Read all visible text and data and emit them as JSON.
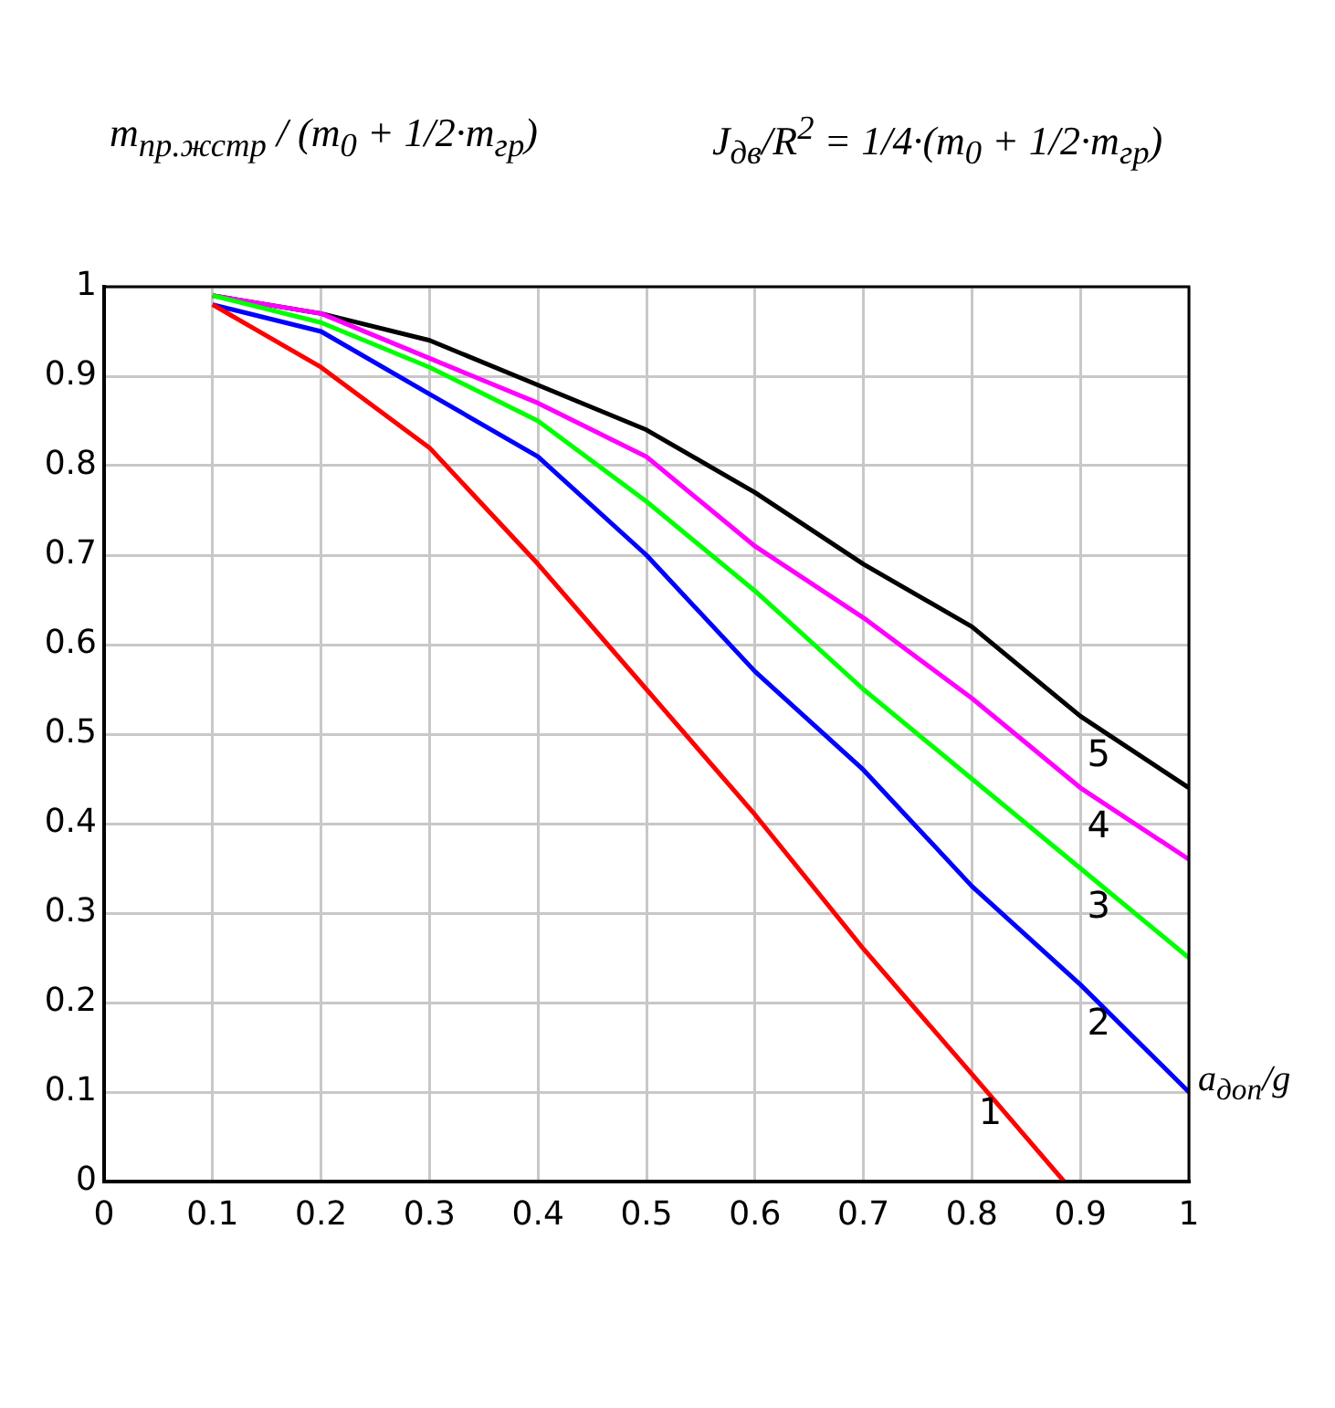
{
  "chart_data": {
    "type": "line",
    "ylabel": "m$_{пр.жстр}$ / (m$_{0}$ + 1/2·m$_{гр}$)",
    "title": "J$_{дв}$/R$^{2}$ = 1/4·(m$_{0}$ + 1/2·m$_{гр}$)",
    "xlabel": "a$_{доп}$/g",
    "x": [
      0.1,
      0.2,
      0.3,
      0.4,
      0.5,
      0.6,
      0.7,
      0.8,
      0.9,
      1.0
    ],
    "series": [
      {
        "name": "1",
        "color": "#ff0000",
        "x": [
          0.1,
          0.2,
          0.3,
          0.4,
          0.5,
          0.6,
          0.7,
          0.8,
          0.885
        ],
        "values": [
          0.98,
          0.91,
          0.82,
          0.69,
          0.55,
          0.41,
          0.26,
          0.12,
          0
        ]
      },
      {
        "name": "2",
        "color": "#0000ff",
        "values": [
          0.98,
          0.95,
          0.88,
          0.81,
          0.7,
          0.57,
          0.46,
          0.33,
          0.22,
          0.1
        ]
      },
      {
        "name": "3",
        "color": "#00ff00",
        "values": [
          0.99,
          0.96,
          0.91,
          0.85,
          0.76,
          0.66,
          0.55,
          0.45,
          0.35,
          0.25
        ]
      },
      {
        "name": "4",
        "color": "#ff00ff",
        "values": [
          0.99,
          0.97,
          0.92,
          0.87,
          0.81,
          0.71,
          0.63,
          0.54,
          0.44,
          0.36
        ]
      },
      {
        "name": "5",
        "color": "#000000",
        "values": [
          0.99,
          0.97,
          0.94,
          0.89,
          0.84,
          0.77,
          0.69,
          0.62,
          0.52,
          0.44
        ]
      }
    ],
    "xlim": [
      0,
      1
    ],
    "ylim": [
      0,
      1
    ],
    "xticks": [
      0,
      0.1,
      0.2,
      0.3,
      0.4,
      0.5,
      0.6,
      0.7,
      0.8,
      0.9,
      1
    ],
    "yticks": [
      0,
      0.1,
      0.2,
      0.3,
      0.4,
      0.5,
      0.6,
      0.7,
      0.8,
      0.9,
      1
    ],
    "grid": true,
    "legend": false,
    "marker": "none",
    "line_style": "solid"
  }
}
